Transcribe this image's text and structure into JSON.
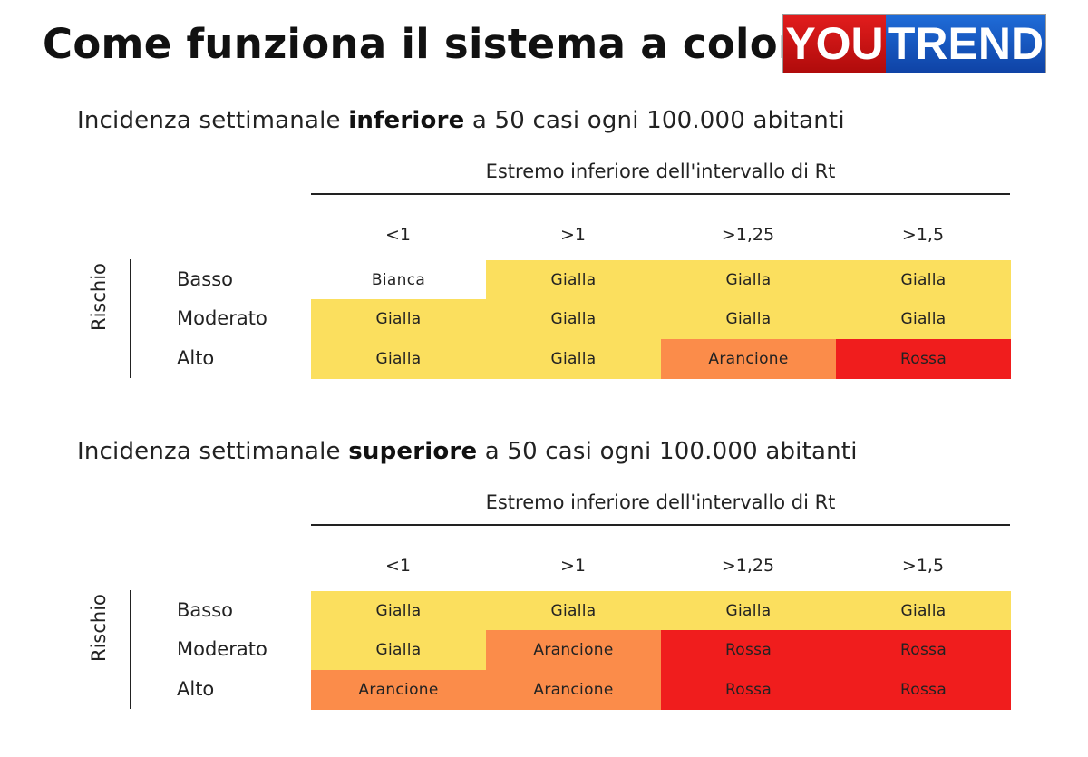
{
  "title": "Come funziona il sistema a colori",
  "logo": {
    "part1": "YOU",
    "part2": "TREND"
  },
  "colors": {
    "Bianca": "#ffffff",
    "Gialla": "#fbdf5e",
    "Arancione": "#fb8c4a",
    "Rossa": "#f01d1d"
  },
  "sections": [
    {
      "heading_pre": "Incidenza settimanale ",
      "heading_bold": "inferiore",
      "heading_post": " a 50 casi ogni 100.000 abitanti",
      "axis_title": "Estremo inferiore dell'intervallo di Rt",
      "columns": [
        "<1",
        ">1",
        ">1,25",
        ">1,5"
      ],
      "row_axis_label": "Rischio",
      "rows": [
        {
          "label": "Basso",
          "cells": [
            "Bianca",
            "Gialla",
            "Gialla",
            "Gialla"
          ]
        },
        {
          "label": "Moderato",
          "cells": [
            "Gialla",
            "Gialla",
            "Gialla",
            "Gialla"
          ]
        },
        {
          "label": "Alto",
          "cells": [
            "Gialla",
            "Gialla",
            "Arancione",
            "Rossa"
          ]
        }
      ]
    },
    {
      "heading_pre": "Incidenza settimanale ",
      "heading_bold": "superiore",
      "heading_post": " a 50 casi ogni 100.000 abitanti",
      "axis_title": "Estremo inferiore dell'intervallo di Rt",
      "columns": [
        "<1",
        ">1",
        ">1,25",
        ">1,5"
      ],
      "row_axis_label": "Rischio",
      "rows": [
        {
          "label": "Basso",
          "cells": [
            "Gialla",
            "Gialla",
            "Gialla",
            "Gialla"
          ]
        },
        {
          "label": "Moderato",
          "cells": [
            "Gialla",
            "Arancione",
            "Rossa",
            "Rossa"
          ]
        },
        {
          "label": "Alto",
          "cells": [
            "Arancione",
            "Arancione",
            "Rossa",
            "Rossa"
          ]
        }
      ]
    }
  ]
}
